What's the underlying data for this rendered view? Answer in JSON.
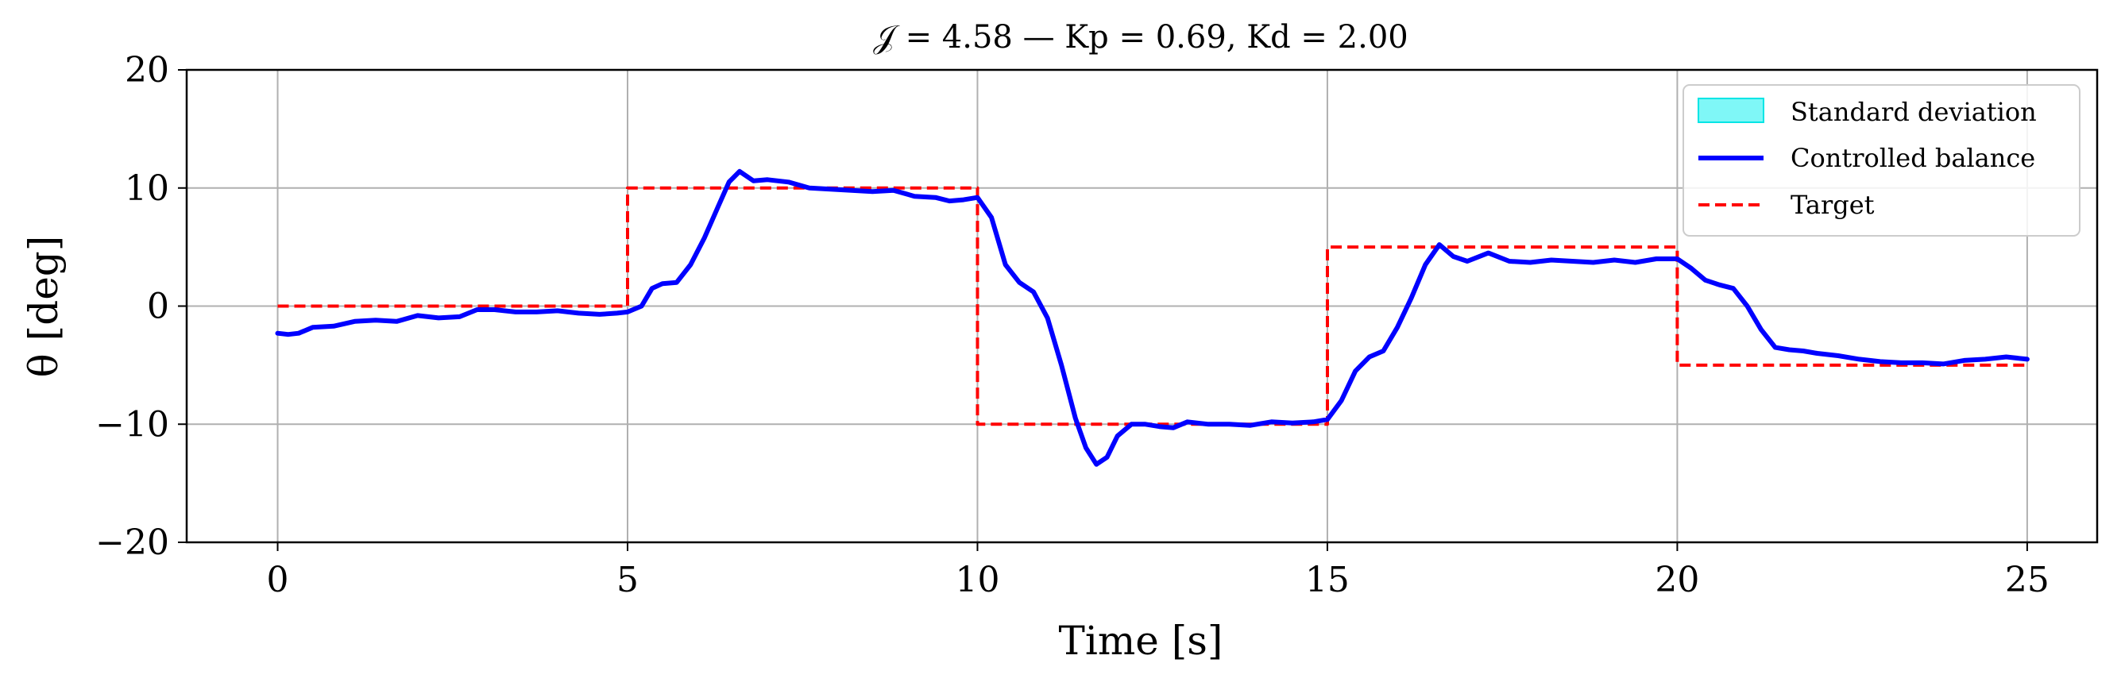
{
  "chart_data": {
    "type": "line",
    "title": "𝒥 = 4.58 — Kp = 0.69, Kd = 2.00",
    "xlabel": "Time [s]",
    "ylabel": "θ [deg]",
    "xlim": [
      -1.3,
      26.0
    ],
    "ylim": [
      -20,
      20
    ],
    "xticks": [
      0,
      5,
      10,
      15,
      20,
      25
    ],
    "yticks": [
      -20,
      -10,
      0,
      10,
      20
    ],
    "xtick_labels": [
      "0",
      "5",
      "10",
      "15",
      "20",
      "25"
    ],
    "ytick_labels": [
      "−20",
      "−10",
      "0",
      "10",
      "20"
    ],
    "grid": true,
    "legend_position": "top-right",
    "legend": [
      "Standard deviation",
      "Controlled balance",
      "Target"
    ],
    "colors": {
      "std_fill": "#7ff7f7",
      "std_edge": "#00e5e5",
      "balance": "#0000ff",
      "target": "#ff0000",
      "grid": "#b0b0b0"
    },
    "series": [
      {
        "name": "Controlled balance",
        "style": "solid",
        "x": [
          0,
          0.15,
          0.3,
          0.5,
          0.8,
          1.1,
          1.4,
          1.7,
          2.0,
          2.3,
          2.6,
          2.85,
          3.1,
          3.4,
          3.7,
          4.0,
          4.3,
          4.6,
          4.85,
          5.0,
          5.2,
          5.35,
          5.5,
          5.7,
          5.9,
          6.1,
          6.3,
          6.45,
          6.6,
          6.8,
          7.0,
          7.3,
          7.6,
          7.9,
          8.2,
          8.5,
          8.8,
          9.1,
          9.4,
          9.6,
          9.8,
          10.0,
          10.2,
          10.4,
          10.6,
          10.8,
          11.0,
          11.2,
          11.4,
          11.55,
          11.7,
          11.85,
          12.0,
          12.2,
          12.4,
          12.6,
          12.8,
          13.0,
          13.3,
          13.6,
          13.9,
          14.2,
          14.5,
          14.8,
          15.0,
          15.2,
          15.4,
          15.6,
          15.8,
          16.0,
          16.2,
          16.4,
          16.6,
          16.8,
          17.0,
          17.3,
          17.6,
          17.9,
          18.2,
          18.5,
          18.8,
          19.1,
          19.4,
          19.7,
          20.0,
          20.2,
          20.4,
          20.6,
          20.8,
          21.0,
          21.2,
          21.4,
          21.6,
          21.8,
          22.0,
          22.3,
          22.6,
          22.9,
          23.2,
          23.5,
          23.8,
          24.1,
          24.4,
          24.7,
          25.0
        ],
        "y": [
          -2.3,
          -2.4,
          -2.3,
          -1.8,
          -1.7,
          -1.3,
          -1.2,
          -1.3,
          -0.8,
          -1.0,
          -0.9,
          -0.3,
          -0.3,
          -0.5,
          -0.5,
          -0.4,
          -0.6,
          -0.7,
          -0.6,
          -0.5,
          0.0,
          1.5,
          1.9,
          2.0,
          3.5,
          5.8,
          8.5,
          10.5,
          11.4,
          10.6,
          10.7,
          10.5,
          10.0,
          9.9,
          9.8,
          9.7,
          9.8,
          9.3,
          9.2,
          8.9,
          9.0,
          9.2,
          7.5,
          3.5,
          2.0,
          1.2,
          -1.0,
          -5.0,
          -9.5,
          -12.0,
          -13.4,
          -12.8,
          -11.0,
          -10.0,
          -10.0,
          -10.2,
          -10.3,
          -9.8,
          -10.0,
          -10.0,
          -10.1,
          -9.8,
          -9.9,
          -9.8,
          -9.6,
          -8.0,
          -5.5,
          -4.3,
          -3.8,
          -1.8,
          0.7,
          3.5,
          5.2,
          4.2,
          3.8,
          4.5,
          3.8,
          3.7,
          3.9,
          3.8,
          3.7,
          3.9,
          3.7,
          4.0,
          4.0,
          3.2,
          2.2,
          1.8,
          1.5,
          0.0,
          -2.0,
          -3.5,
          -3.7,
          -3.8,
          -4.0,
          -4.2,
          -4.5,
          -4.7,
          -4.8,
          -4.8,
          -4.9,
          -4.6,
          -4.5,
          -4.3,
          -4.5
        ]
      },
      {
        "name": "Target",
        "style": "dashed",
        "x": [
          0,
          5,
          5,
          10,
          10,
          15,
          15,
          20,
          20,
          25
        ],
        "y": [
          0,
          0,
          10,
          10,
          -10,
          -10,
          5,
          5,
          -5,
          -5
        ]
      }
    ]
  }
}
